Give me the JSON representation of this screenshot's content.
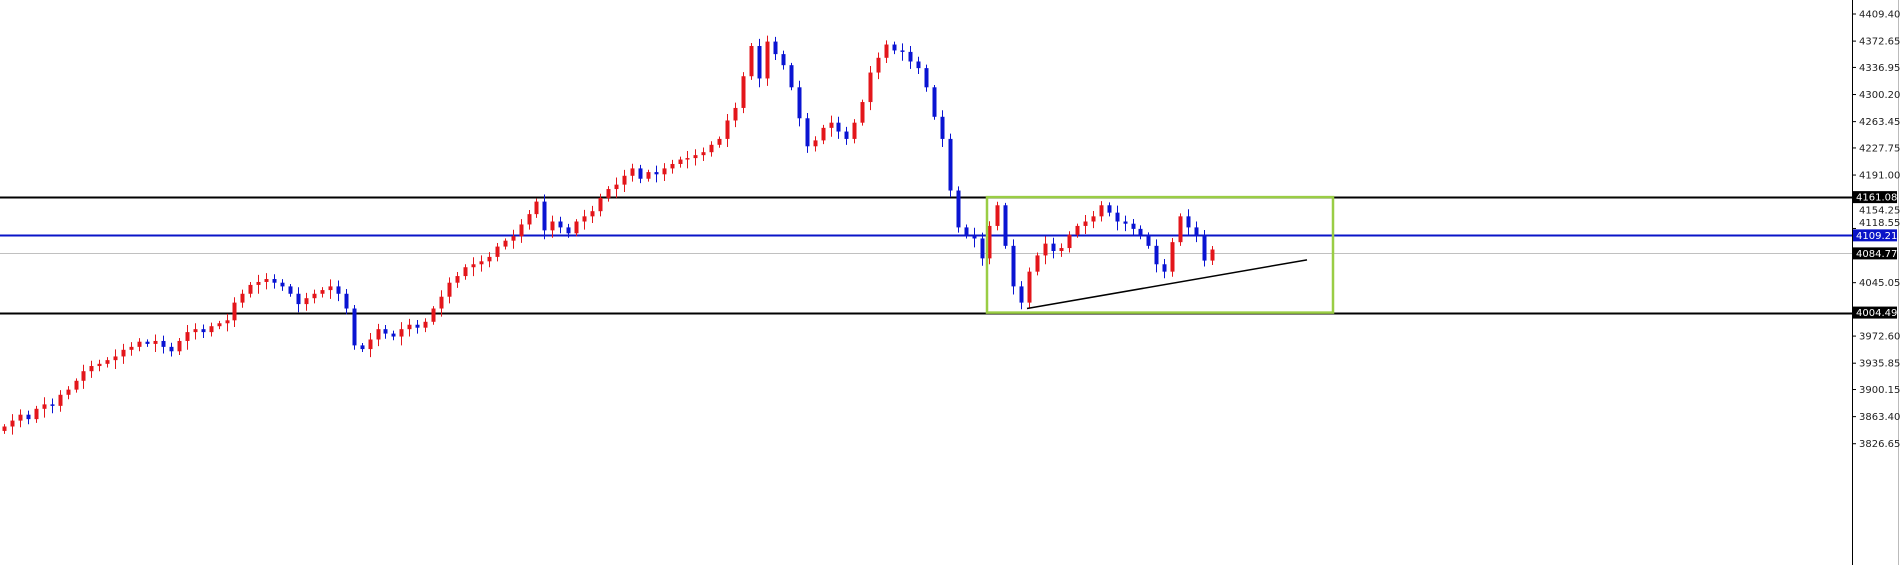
{
  "chart_data": {
    "type": "candlestick",
    "title": "",
    "xlabel": "",
    "ylabel": "",
    "ylim": [
      3800,
      4425
    ],
    "y_ticks": [
      "4409.40",
      "4372.65",
      "4336.95",
      "4300.20",
      "4263.45",
      "4227.75",
      "4191.00",
      "4154.25",
      "4118.55",
      "4045.05",
      "3972.60",
      "3935.85",
      "3900.15",
      "3863.40",
      "3826.65"
    ],
    "up_color": "#e3161b",
    "down_color": "#0a14d2",
    "closes": [
      3850,
      3858,
      3866,
      3860,
      3874,
      3880,
      3878,
      3893,
      3900,
      3912,
      3925,
      3932,
      3935,
      3940,
      3945,
      3954,
      3958,
      3965,
      3962,
      3966,
      3958,
      3952,
      3966,
      3978,
      3982,
      3978,
      3986,
      3990,
      3994,
      4018,
      4030,
      4042,
      4046,
      4050,
      4045,
      4040,
      4030,
      4016,
      4024,
      4030,
      4035,
      4040,
      4030,
      4010,
      3960,
      3955,
      3968,
      3982,
      3976,
      3972,
      3982,
      3988,
      3984,
      3992,
      4010,
      4026,
      4045,
      4054,
      4066,
      4070,
      4074,
      4080,
      4094,
      4102,
      4108,
      4124,
      4138,
      4155,
      4116,
      4128,
      4120,
      4112,
      4128,
      4135,
      4142,
      4160,
      4172,
      4178,
      4190,
      4200,
      4186,
      4195,
      4192,
      4200,
      4206,
      4212,
      4214,
      4218,
      4222,
      4232,
      4240,
      4265,
      4282,
      4325,
      4366,
      4322,
      4372,
      4355,
      4340,
      4310,
      4268,
      4230,
      4238,
      4255,
      4262,
      4250,
      4240,
      4262,
      4290,
      4330,
      4350,
      4368,
      4360,
      4358,
      4345,
      4336,
      4310,
      4270,
      4240,
      4170,
      4120,
      4110,
      4105,
      4078,
      4122,
      4150,
      4095,
      4040,
      4018,
      4060,
      4082,
      4098,
      4088,
      4092,
      4110,
      4122,
      4128,
      4135,
      4150,
      4140,
      4128,
      4125,
      4118,
      4110,
      4095,
      4070,
      4060,
      4100,
      4135,
      4120,
      4110,
      4075,
      4090
    ],
    "levels": [
      {
        "value": 4161.08,
        "label": "4161.08",
        "color": "#000000"
      },
      {
        "value": 4109.21,
        "label": "4109.21",
        "color": "#0a14c8"
      },
      {
        "value": 4084.77,
        "label": "4084.77",
        "color": "#c0c0c0",
        "label_bg": "#000000"
      },
      {
        "value": 4004.49,
        "label": "4004.49",
        "color": "#000000"
      }
    ],
    "range_box": {
      "top": 4161.08,
      "bottom": 4004.49,
      "color": "#9acd45"
    },
    "trendline": {
      "from_price": 4010,
      "to_price": 4076
    }
  }
}
